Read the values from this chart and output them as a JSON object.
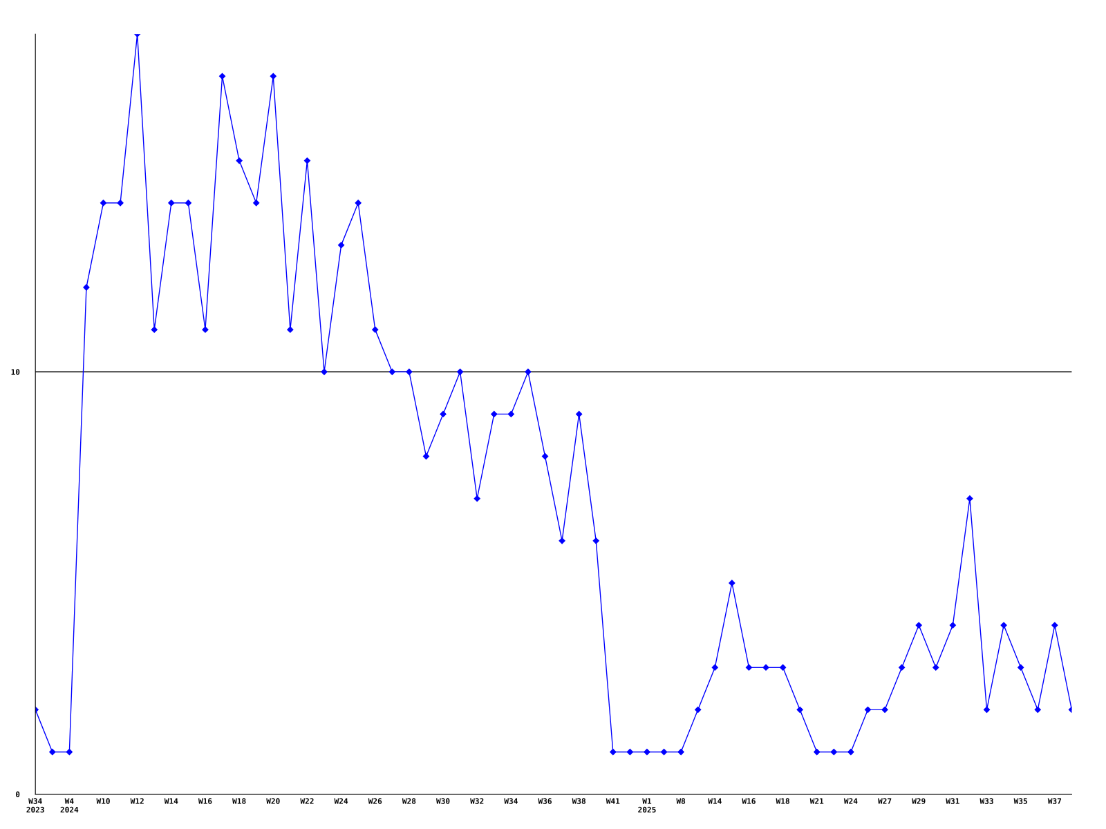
{
  "chart_data": {
    "type": "line",
    "categories": [
      "W34\n2023",
      null,
      "W4\n2024",
      null,
      "W10",
      null,
      "W12",
      null,
      "W14",
      null,
      "W16",
      null,
      "W18",
      null,
      "W20",
      null,
      "W22",
      null,
      "W24",
      null,
      "W26",
      null,
      "W28",
      null,
      "W30",
      null,
      "W32",
      null,
      "W34",
      null,
      "W36",
      null,
      "W38",
      null,
      "W41",
      null,
      "W1\n2025",
      null,
      "W8",
      null,
      "W14",
      null,
      "W16",
      null,
      "W18",
      null,
      "W21",
      null,
      "W24",
      null,
      "W27",
      null,
      "W29",
      null,
      "W31",
      null,
      "W33",
      null,
      "W35",
      null,
      "W37",
      null
    ],
    "series": [
      {
        "color": "#0000ff",
        "values": [
          2,
          1,
          1,
          12,
          14,
          14,
          18,
          11,
          14,
          14,
          11,
          17,
          15,
          14,
          17,
          11,
          15,
          10,
          13,
          14,
          11,
          10,
          10,
          8,
          9,
          10,
          7,
          9,
          9,
          10,
          8,
          6,
          9,
          6,
          1,
          1,
          1,
          1,
          1,
          2,
          3,
          5,
          3,
          3,
          3,
          2,
          1,
          1,
          1,
          2,
          2,
          3,
          4,
          3,
          4,
          7,
          2,
          4,
          3,
          2,
          4,
          2
        ]
      }
    ],
    "ylim": [
      0,
      18
    ],
    "yticks": [
      0,
      10
    ],
    "grid": "y",
    "marker": "diamond",
    "line_style": "solid"
  }
}
